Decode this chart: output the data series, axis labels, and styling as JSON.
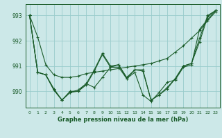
{
  "background_color": "#cce8e8",
  "grid_color": "#99cccc",
  "line_color": "#1a5c2a",
  "title": "Graphe pression niveau de la mer (hPa)",
  "xlim": [
    -0.5,
    23.5
  ],
  "ylim": [
    989.35,
    993.45
  ],
  "yticks": [
    990,
    991,
    992,
    993
  ],
  "xtick_labels": [
    "0",
    "1",
    "2",
    "3",
    "4",
    "5",
    "6",
    "7",
    "8",
    "9",
    "10",
    "11",
    "12",
    "13",
    "14",
    "15",
    "16",
    "17",
    "18",
    "19",
    "20",
    "21",
    "22",
    "23"
  ],
  "series": [
    [
      993.0,
      992.15,
      991.05,
      990.65,
      990.55,
      990.55,
      990.6,
      990.7,
      990.75,
      990.8,
      990.85,
      990.9,
      990.95,
      991.0,
      991.05,
      991.1,
      991.2,
      991.3,
      991.55,
      991.8,
      992.1,
      992.4,
      992.8,
      993.15
    ],
    [
      993.0,
      990.75,
      990.65,
      990.05,
      989.65,
      989.95,
      990.05,
      990.3,
      990.85,
      991.5,
      991.0,
      991.05,
      990.55,
      990.85,
      990.85,
      989.65,
      989.85,
      990.15,
      990.5,
      991.0,
      991.1,
      992.1,
      993.0,
      993.2
    ],
    [
      993.0,
      990.75,
      990.65,
      990.1,
      989.65,
      990.0,
      990.0,
      990.3,
      990.15,
      990.55,
      990.95,
      990.95,
      990.5,
      990.75,
      989.85,
      989.6,
      989.95,
      990.35,
      990.45,
      990.95,
      991.05,
      992.45,
      992.85,
      993.2
    ],
    [
      993.0,
      990.75,
      990.65,
      990.05,
      989.65,
      989.95,
      990.0,
      990.25,
      990.8,
      991.45,
      990.95,
      991.05,
      990.5,
      990.85,
      990.8,
      989.65,
      989.85,
      990.1,
      990.5,
      991.0,
      991.1,
      991.95,
      992.95,
      993.2
    ]
  ]
}
